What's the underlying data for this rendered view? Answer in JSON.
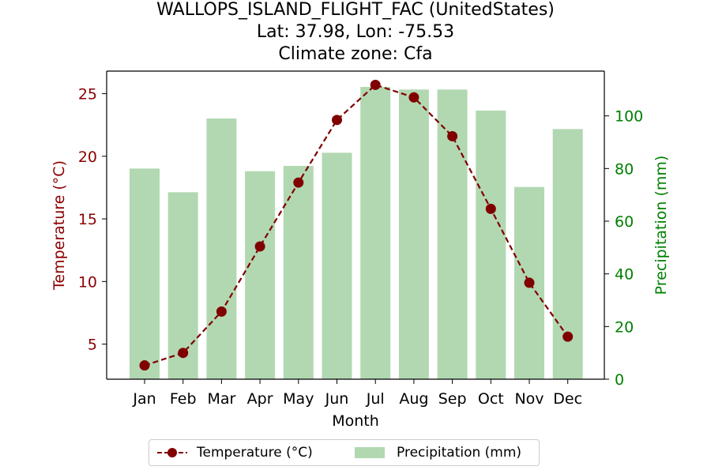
{
  "title": {
    "line1": "WALLOPS_ISLAND_FLIGHT_FAC (UnitedStates)",
    "line2": "Lat: 37.98, Lon: -75.53",
    "line3": "Climate zone: Cfa"
  },
  "chart_data": {
    "type": "bar+line",
    "title": "WALLOPS_ISLAND_FLIGHT_FAC (UnitedStates)\nLat: 37.98, Lon: -75.53\nClimate zone: Cfa",
    "xlabel": "Month",
    "categories": [
      "Jan",
      "Feb",
      "Mar",
      "Apr",
      "May",
      "Jun",
      "Jul",
      "Aug",
      "Sep",
      "Oct",
      "Nov",
      "Dec"
    ],
    "series": [
      {
        "name": "Temperature (°C)",
        "type": "line",
        "axis": "left",
        "color": "#800000",
        "values": [
          3.3,
          4.3,
          7.6,
          12.8,
          17.9,
          22.9,
          25.7,
          24.7,
          21.6,
          15.8,
          9.9,
          5.6
        ]
      },
      {
        "name": "Precipitation (mm)",
        "type": "bar",
        "axis": "right",
        "color": "#b2d8b2",
        "values": [
          80,
          71,
          99,
          79,
          81,
          86,
          111,
          110,
          110,
          102,
          73,
          95
        ]
      }
    ],
    "y_left": {
      "label": "Temperature (°C)",
      "ylim": [
        2.2,
        26.8
      ],
      "ticks": [
        5,
        10,
        15,
        20,
        25
      ],
      "color": "#8b0000"
    },
    "y_right": {
      "label": "Precipitation (mm)",
      "ylim": [
        0,
        117
      ],
      "ticks": [
        0,
        20,
        40,
        60,
        80,
        100
      ],
      "color": "#008000"
    },
    "grid": false,
    "legend_position": "bottom-center"
  },
  "legend": {
    "temp_label": "Temperature (°C)",
    "prec_label": "Precipitation (mm)"
  }
}
